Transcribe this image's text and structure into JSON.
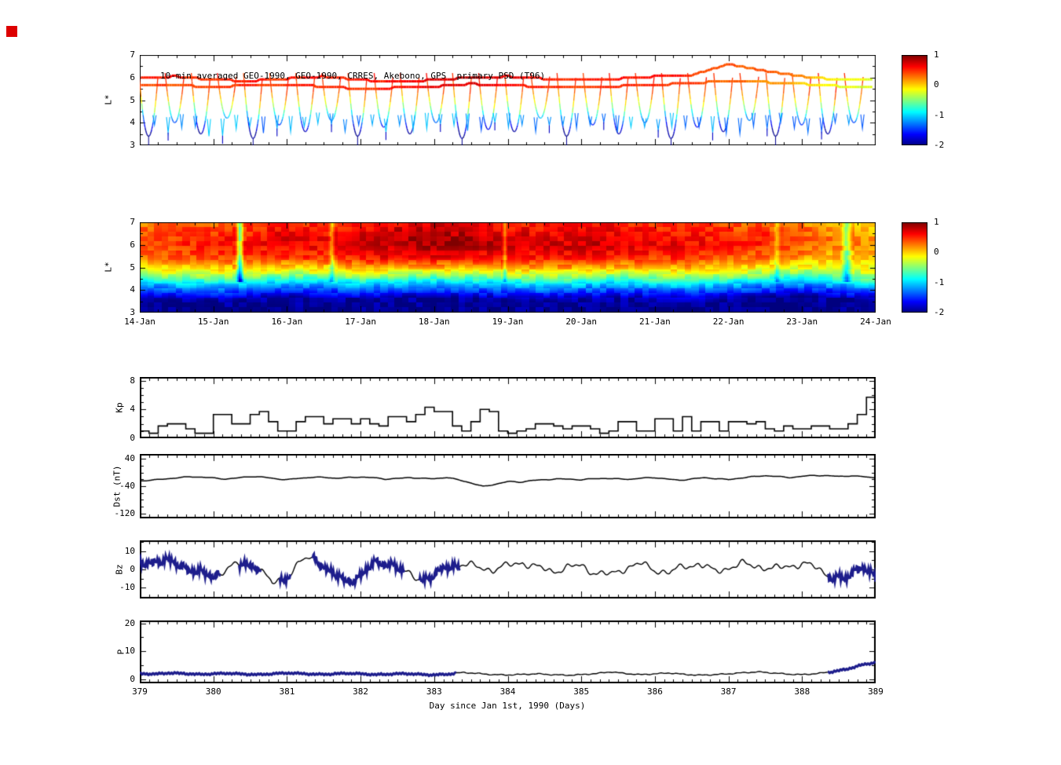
{
  "figure": {
    "xlabel": "Day since Jan 1st, 1990 (Days)",
    "x_range": [
      379,
      389
    ],
    "x_ticks": [
      379,
      380,
      381,
      382,
      383,
      384,
      385,
      386,
      387,
      388,
      389
    ],
    "date_ticks": [
      "14-Jan",
      "15-Jan",
      "16-Jan",
      "17-Jan",
      "18-Jan",
      "19-Jan",
      "20-Jan",
      "21-Jan",
      "22-Jan",
      "23-Jan",
      "24-Jan"
    ],
    "background": "#ffffff",
    "accent_marker_color": "#dd0000",
    "thick_line_color": "#1d1d8c"
  },
  "colorbar": {
    "min": -2,
    "max": 1,
    "ticks": [
      1,
      0,
      -1,
      -2
    ]
  },
  "chart_data": [
    {
      "id": "psd_scatter",
      "type": "scatter",
      "title": "10-min averaged GEO-1990, GEO-1990, CRRES, Akebono, GPS  primary PSD (T96)",
      "satellites": [
        "GEO-1990",
        "GEO-1990",
        "CRRES",
        "Akebono",
        "GPS"
      ],
      "model": "T96",
      "ylabel": "L*",
      "ylim": [
        3,
        7
      ],
      "yticks": [
        3,
        4,
        5,
        6,
        7
      ],
      "colorbar": {
        "min": -2,
        "max": 1,
        "ticks": [
          1,
          0,
          -1,
          -2
        ]
      },
      "geo_tracks": [
        {
          "l": [
            6.0,
            6.05,
            5.9,
            5.85,
            5.95,
            6.05,
            5.9,
            5.8,
            5.9,
            6.0,
            6.05,
            5.95,
            5.9,
            5.95,
            6.05,
            6.1,
            6.6,
            6.3,
            6.05,
            5.9,
            5.95
          ],
          "psd": [
            0.6,
            0.55,
            0.5,
            0.55,
            0.5,
            0.6,
            0.55,
            0.6,
            0.75,
            0.8,
            0.7,
            0.55,
            0.5,
            0.55,
            0.6,
            0.5,
            0.4,
            0.35,
            0.2,
            -0.1,
            -0.25
          ]
        },
        {
          "l": [
            5.7,
            5.65,
            5.6,
            5.65,
            5.7,
            5.6,
            5.5,
            5.55,
            5.6,
            5.72,
            5.65,
            5.6,
            5.55,
            5.62,
            5.68,
            5.75,
            5.85,
            5.8,
            5.72,
            5.62,
            5.58
          ],
          "psd": [
            0.45,
            0.4,
            0.45,
            0.5,
            0.45,
            0.55,
            0.5,
            0.55,
            0.7,
            0.75,
            0.6,
            0.5,
            0.45,
            0.5,
            0.55,
            0.45,
            0.35,
            0.25,
            0.05,
            -0.15,
            -0.3
          ]
        }
      ],
      "orbits": {
        "t0": 379.12,
        "dt": 0.355,
        "count": 28,
        "l_top": 6.2,
        "lmin": [
          3.4,
          4.0,
          3.5,
          4.2,
          3.3,
          3.9,
          3.6,
          4.1,
          3.4,
          3.8,
          3.5,
          4.0,
          3.3,
          3.7,
          3.6,
          4.2,
          3.4,
          3.9,
          3.5,
          4.0,
          3.3,
          3.8,
          3.6,
          4.1,
          3.4,
          3.9,
          3.5,
          4.0
        ]
      },
      "minor_marks": {
        "t0": 379.2,
        "dt": 0.185,
        "count": 53,
        "l": 4.3,
        "depth": 0.55
      }
    },
    {
      "id": "psd_map",
      "type": "heatmap",
      "ylabel": "L*",
      "ylim": [
        3,
        7
      ],
      "yticks": [
        3,
        4,
        5,
        6,
        7
      ],
      "x_tick_labels": [
        "14-Jan",
        "15-Jan",
        "16-Jan",
        "17-Jan",
        "18-Jan",
        "19-Jan",
        "20-Jan",
        "21-Jan",
        "22-Jan",
        "23-Jan",
        "24-Jan"
      ],
      "colorbar": {
        "min": -2,
        "max": 1,
        "ticks": [
          1,
          0,
          -1,
          -2
        ]
      },
      "profile_l": [
        3.0,
        3.6,
        4.0,
        4.3,
        4.6,
        5.0,
        5.4,
        6.0,
        6.5,
        7.0
      ],
      "profile_psd": [
        -2.0,
        -1.9,
        -1.4,
        -1.0,
        -0.5,
        0.0,
        0.35,
        0.55,
        0.5,
        0.35
      ],
      "time_shift": [
        0.05,
        0.0,
        -0.05,
        0.0,
        0.1,
        0.05,
        0.0,
        0.05,
        0.1,
        0.05,
        0.0,
        -0.05,
        0.0,
        0.05,
        0.0,
        -0.05,
        0.0,
        0.1,
        0.15,
        0.05,
        -0.05
      ],
      "time_bump": [
        -0.1,
        -0.05,
        0.0,
        0.05,
        0.15,
        0.1,
        0.2,
        0.3,
        0.35,
        0.3,
        0.2,
        0.18,
        0.22,
        0.18,
        0.12,
        0.08,
        0.0,
        -0.05,
        -0.15,
        -0.3,
        -0.35
      ],
      "streaks": [
        {
          "t": 380.35,
          "w": 0.06,
          "dv": -1.1
        },
        {
          "t": 381.6,
          "w": 0.05,
          "dv": -0.5
        },
        {
          "t": 383.95,
          "w": 0.04,
          "dv": -0.45
        },
        {
          "t": 387.65,
          "w": 0.05,
          "dv": -0.4
        },
        {
          "t": 388.6,
          "w": 0.08,
          "dv": -0.7
        }
      ]
    },
    {
      "id": "kp",
      "type": "line",
      "ylabel": "Kp",
      "ylim": [
        0,
        8.5
      ],
      "yticks": [
        0,
        4,
        8
      ],
      "step_days": 0.125,
      "values": [
        1.0,
        0.7,
        1.7,
        2.0,
        2.0,
        1.3,
        0.7,
        0.7,
        3.3,
        3.3,
        2.0,
        2.0,
        3.3,
        3.7,
        2.3,
        1.0,
        1.0,
        2.3,
        3.0,
        3.0,
        2.0,
        2.7,
        2.7,
        2.0,
        2.7,
        2.0,
        1.7,
        3.0,
        3.0,
        2.3,
        3.3,
        4.3,
        3.7,
        3.7,
        1.7,
        1.0,
        2.3,
        4.0,
        3.7,
        1.0,
        0.7,
        1.0,
        1.3,
        2.0,
        2.0,
        1.7,
        1.3,
        1.7,
        1.7,
        1.3,
        0.7,
        1.0,
        2.3,
        2.3,
        1.0,
        1.0,
        2.7,
        2.7,
        1.0,
        3.0,
        1.0,
        2.3,
        2.3,
        1.0,
        2.3,
        2.3,
        2.0,
        2.3,
        1.3,
        1.0,
        1.7,
        1.3,
        1.3,
        1.7,
        1.7,
        1.3,
        1.3,
        2.0,
        3.3,
        5.7
      ]
    },
    {
      "id": "dst",
      "type": "line",
      "ylabel": "Dst (nT)",
      "ylim": [
        -135,
        55
      ],
      "yticks": [
        40,
        -40,
        -120
      ],
      "step_days": 0.16667,
      "values": [
        -25,
        -22,
        -18,
        -15,
        -13,
        -14,
        -16,
        -18,
        -15,
        -12,
        -14,
        -18,
        -20,
        -16,
        -14,
        -15,
        -17,
        -14,
        -12,
        -15,
        -20,
        -18,
        -14,
        -16,
        -18,
        -15,
        -22,
        -30,
        -40,
        -34,
        -27,
        -29,
        -23,
        -20,
        -18,
        -20,
        -22,
        -18,
        -16,
        -18,
        -20,
        -17,
        -15,
        -18,
        -22,
        -19,
        -16,
        -18,
        -20,
        -15,
        -12,
        -10,
        -12,
        -14,
        -10,
        -8,
        -10,
        -12,
        -9,
        -11,
        -15
      ]
    },
    {
      "id": "bz",
      "type": "line",
      "ylabel": "Bz",
      "ylim": [
        -16,
        16
      ],
      "yticks": [
        -10,
        0,
        10
      ],
      "step_days": 0.2,
      "values": [
        3,
        5,
        4,
        2,
        -2,
        -4,
        1,
        3,
        2,
        -8,
        -4,
        5,
        6,
        -2,
        -7,
        -3,
        3,
        4,
        -2,
        -5,
        -4,
        2,
        3,
        1,
        0,
        2,
        4,
        1,
        -1,
        1,
        2,
        -2,
        -3,
        1,
        3,
        0,
        -2,
        2,
        3,
        -1,
        1,
        3,
        2,
        0,
        2,
        3,
        1,
        -4,
        -6,
        3,
        -5
      ],
      "thick_intervals": [
        [
          379.0,
          380.1
        ],
        [
          380.35,
          380.65
        ],
        [
          380.9,
          381.05
        ],
        [
          381.35,
          382.6
        ],
        [
          382.8,
          383.35
        ],
        [
          388.35,
          389.0
        ]
      ]
    },
    {
      "id": "p",
      "type": "line",
      "ylabel": "P",
      "ylim": [
        -1.5,
        21
      ],
      "yticks": [
        0,
        10,
        20
      ],
      "step_days": 0.2,
      "values": [
        2.0,
        1.8,
        2.2,
        2.0,
        1.7,
        1.9,
        2.1,
        1.8,
        1.6,
        1.9,
        2.2,
        2.0,
        1.7,
        1.8,
        2.1,
        1.9,
        1.6,
        1.8,
        2.0,
        1.7,
        1.5,
        1.8,
        2.4,
        2.0,
        1.6,
        1.5,
        1.7,
        1.9,
        1.6,
        1.4,
        1.6,
        2.0,
        2.6,
        2.0,
        1.6,
        1.9,
        2.2,
        1.7,
        1.4,
        1.6,
        1.9,
        2.3,
        2.6,
        2.2,
        1.8,
        1.6,
        2.0,
        2.6,
        3.5,
        5.0,
        6.0
      ],
      "thick_intervals": [
        [
          379.0,
          383.3
        ],
        [
          388.35,
          389.0
        ]
      ]
    }
  ]
}
